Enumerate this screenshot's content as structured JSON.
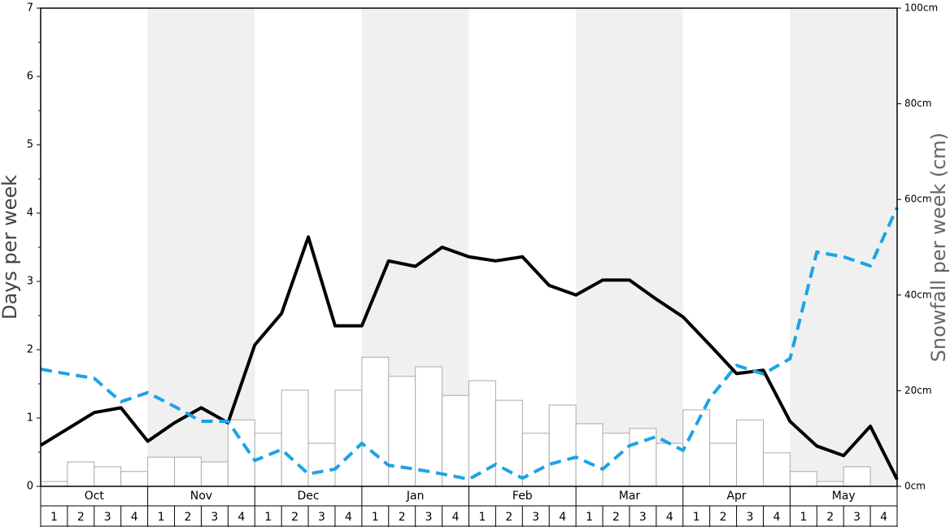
{
  "chart_data": {
    "type": "bar",
    "y_label": "Days per week",
    "y2_label": "Snowfall per week (cm)",
    "months": [
      "Oct",
      "Nov",
      "Dec",
      "Jan",
      "Feb",
      "Mar",
      "Apr",
      "May"
    ],
    "week_labels": [
      1,
      2,
      3,
      4
    ],
    "ylim": [
      0,
      7
    ],
    "yticks": [
      0,
      1,
      2,
      3,
      4,
      5,
      6,
      7
    ],
    "yminorticks": [
      0.5,
      1.5,
      2.5,
      3.5,
      4.5,
      5.5,
      6.5
    ],
    "y2lim": [
      0,
      100
    ],
    "y2ticks": [
      {
        "value": 0,
        "label": "0cm"
      },
      {
        "value": 20,
        "label": "20cm"
      },
      {
        "value": 40,
        "label": "40cm"
      },
      {
        "value": 60,
        "label": "60cm"
      },
      {
        "value": 80,
        "label": "80cm"
      },
      {
        "value": 100,
        "label": "100cm"
      }
    ],
    "shaded_color": "#f0f0f0",
    "series": [
      {
        "type": "bar",
        "axis": "y2",
        "color": "#ffffff",
        "edge": "#aaaaaa",
        "values": [
          1.0,
          5.1,
          4.1,
          3.1,
          6.1,
          6.1,
          5.1,
          13.9,
          11.1,
          20.1,
          9.0,
          20.1,
          27.0,
          23.0,
          25.0,
          19.0,
          22.1,
          18.0,
          11.1,
          17.0,
          13.1,
          11.1,
          12.1,
          9.0,
          16.0,
          9.0,
          13.9,
          7.0,
          3.1,
          1.0,
          4.1,
          0
        ]
      },
      {
        "type": "line",
        "axis": "y",
        "color": "#000000",
        "dash": false,
        "values": [
          0.6,
          0.84,
          1.08,
          1.15,
          0.66,
          0.93,
          1.15,
          0.93,
          2.07,
          2.53,
          3.65,
          2.35,
          2.35,
          3.3,
          3.22,
          3.5,
          3.36,
          3.3,
          3.36,
          2.94,
          2.8,
          3.02,
          3.02,
          2.74,
          2.48,
          2.07,
          1.65,
          1.7,
          0.95,
          0.59,
          0.45,
          0.88,
          0.1
        ]
      },
      {
        "type": "line",
        "axis": "y2",
        "color": "#1ca3e6",
        "dash": true,
        "values": [
          24.5,
          23.5,
          22.6,
          17.7,
          19.6,
          16.7,
          13.6,
          13.6,
          5.4,
          7.7,
          2.6,
          3.6,
          9.0,
          4.4,
          3.6,
          2.6,
          1.5,
          4.6,
          1.7,
          4.6,
          6.1,
          3.6,
          8.5,
          10.4,
          7.5,
          18.4,
          25.3,
          23.5,
          26.7,
          49,
          48,
          46.1,
          58.3
        ]
      }
    ]
  }
}
